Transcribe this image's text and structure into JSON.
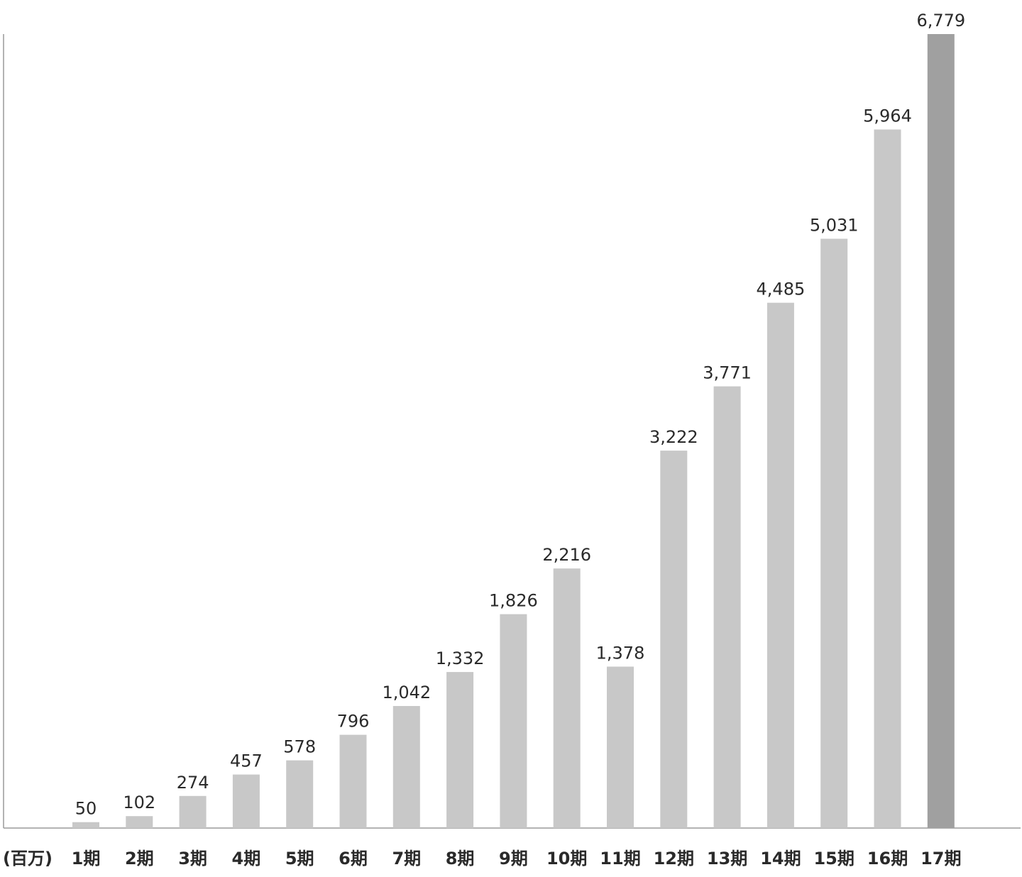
{
  "chart_data": {
    "type": "bar",
    "title": "",
    "xlabel": "",
    "ylabel": "",
    "unit_label": "(百万)",
    "categories": [
      "1期",
      "2期",
      "3期",
      "4期",
      "5期",
      "6期",
      "7期",
      "8期",
      "9期",
      "10期",
      "11期",
      "12期",
      "13期",
      "14期",
      "15期",
      "16期",
      "17期"
    ],
    "values": [
      50,
      102,
      274,
      457,
      578,
      796,
      1042,
      1332,
      1826,
      2216,
      1378,
      3222,
      3771,
      4485,
      5031,
      5964,
      6779
    ],
    "value_labels": [
      "50",
      "102",
      "274",
      "457",
      "578",
      "796",
      "1,042",
      "1,332",
      "1,826",
      "2,216",
      "1,378",
      "3,222",
      "3,771",
      "4,485",
      "5,031",
      "5,964",
      "6,779"
    ],
    "ylim": [
      0,
      6779
    ],
    "grid": false,
    "legend": "none",
    "colors": {
      "bar": "#c8c8c8",
      "highlight_bar": "#a0a0a0",
      "axis": "#9a9a9a",
      "text": "#2a2a2a"
    },
    "highlight_index": 16
  }
}
